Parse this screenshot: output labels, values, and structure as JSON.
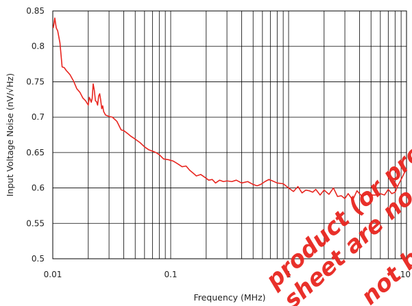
{
  "chart_data": {
    "type": "line",
    "title": "",
    "xlabel": "Frequency (MHz)",
    "ylabel": "Input Voltage Noise (nV/√Hz)",
    "xscale": "log",
    "xlim": [
      0.01,
      10
    ],
    "ylim": [
      0.5,
      0.85
    ],
    "grid": true,
    "x_tick_labels": [
      "0.01",
      "0.1",
      "1",
      "10"
    ],
    "y_tick_labels": [
      "0.5",
      "0.55",
      "0.6",
      "0.65",
      "0.7",
      "0.75",
      "0.8",
      "0.85"
    ],
    "colors": {
      "series": "#e8251f",
      "grid": "#000000",
      "watermark": "#e8251f"
    },
    "series": [
      {
        "x": [
          0.0101,
          0.0104,
          0.0107,
          0.011,
          0.0115,
          0.012,
          0.0125,
          0.013,
          0.014,
          0.015,
          0.016,
          0.017,
          0.018,
          0.019,
          0.02,
          0.0204,
          0.0208,
          0.0212,
          0.0216,
          0.022,
          0.0225,
          0.023,
          0.0235,
          0.024,
          0.0245,
          0.025,
          0.0255,
          0.026,
          0.0265,
          0.027,
          0.028,
          0.03,
          0.032,
          0.035,
          0.038,
          0.04,
          0.043,
          0.046,
          0.05,
          0.055,
          0.06,
          0.065,
          0.07,
          0.075,
          0.08,
          0.087,
          0.095,
          0.105,
          0.115,
          0.125,
          0.135,
          0.145,
          0.155,
          0.165,
          0.18,
          0.195,
          0.21,
          0.225,
          0.24,
          0.26,
          0.28,
          0.3,
          0.33,
          0.36,
          0.4,
          0.45,
          0.5,
          0.54,
          0.58,
          0.63,
          0.68,
          0.73,
          0.8,
          0.9,
          1.0,
          1.1,
          1.2,
          1.3,
          1.4,
          1.5,
          1.6,
          1.7,
          1.85,
          2.0,
          2.2,
          2.4,
          2.6,
          2.8,
          3.0,
          3.2,
          3.5,
          3.8,
          4.2,
          4.6,
          5.0,
          5.5,
          6.0,
          6.5,
          7.0,
          7.5,
          8.0,
          8.5,
          9.0,
          9.5,
          10.0
        ],
        "values": [
          0.826,
          0.84,
          0.826,
          0.822,
          0.805,
          0.771,
          0.77,
          0.766,
          0.76,
          0.751,
          0.74,
          0.735,
          0.727,
          0.723,
          0.717,
          0.728,
          0.725,
          0.721,
          0.727,
          0.747,
          0.738,
          0.723,
          0.722,
          0.717,
          0.73,
          0.733,
          0.724,
          0.712,
          0.716,
          0.708,
          0.703,
          0.701,
          0.7,
          0.694,
          0.682,
          0.681,
          0.677,
          0.673,
          0.669,
          0.664,
          0.658,
          0.654,
          0.652,
          0.65,
          0.647,
          0.641,
          0.64,
          0.638,
          0.634,
          0.63,
          0.631,
          0.625,
          0.621,
          0.617,
          0.619,
          0.615,
          0.611,
          0.612,
          0.607,
          0.611,
          0.609,
          0.61,
          0.609,
          0.611,
          0.607,
          0.609,
          0.605,
          0.603,
          0.605,
          0.609,
          0.612,
          0.61,
          0.607,
          0.606,
          0.6,
          0.595,
          0.602,
          0.593,
          0.597,
          0.596,
          0.594,
          0.598,
          0.59,
          0.597,
          0.591,
          0.6,
          0.588,
          0.589,
          0.585,
          0.592,
          0.583,
          0.596,
          0.588,
          0.591,
          0.59,
          0.59,
          0.592,
          0.59,
          0.598,
          0.592,
          0.594,
          0.604,
          0.612,
          0.62,
          0.627
        ]
      }
    ]
  },
  "watermark": {
    "lines": [
      "product (or produ",
      "sheet are no",
      "not be"
    ]
  }
}
